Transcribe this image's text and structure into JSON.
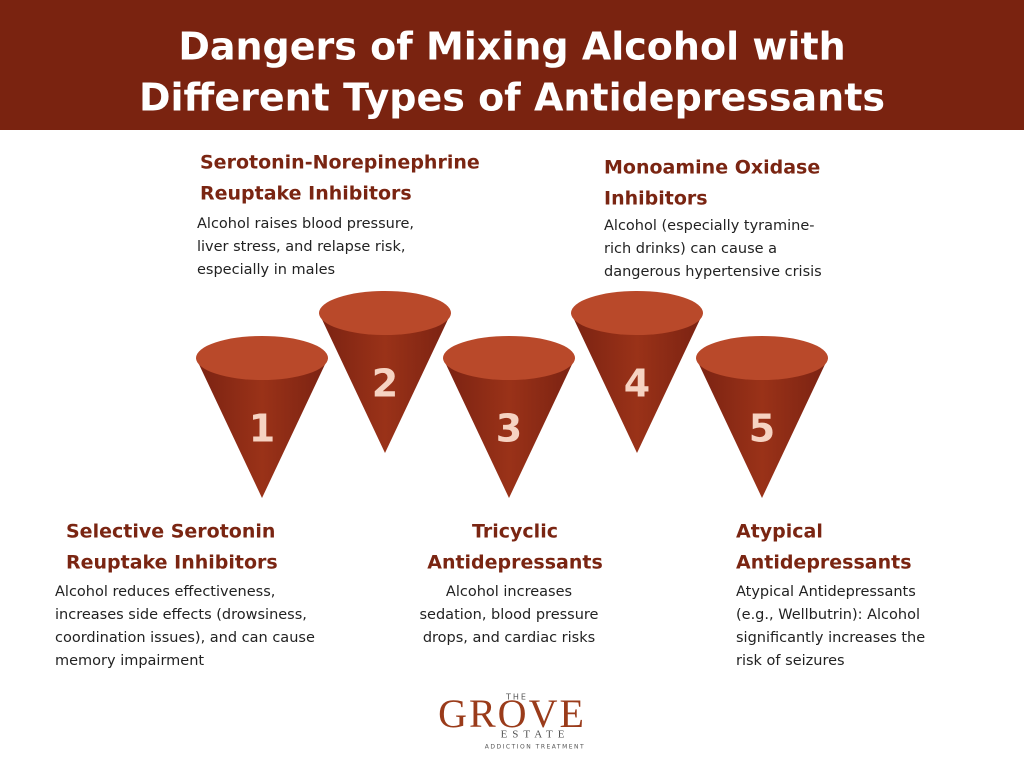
{
  "header": {
    "title_lines": [
      "Dangers of Mixing Alcohol with",
      "Different Types of Antidepressants"
    ]
  },
  "items": [
    {
      "number": "1",
      "heading": [
        "Selective Serotonin",
        "Reuptake Inhibitors"
      ],
      "description": [
        "Alcohol reduces effectiveness,",
        "increases side effects (drowsiness,",
        "coordination issues), and can cause",
        "memory impairment"
      ]
    },
    {
      "number": "2",
      "heading": [
        "Serotonin-Norepinephrine",
        "Reuptake Inhibitors"
      ],
      "description": [
        "Alcohol raises blood pressure,",
        "liver stress, and relapse risk,",
        "especially in males"
      ]
    },
    {
      "number": "3",
      "heading": [
        "Tricyclic",
        "Antidepressants"
      ],
      "description": [
        "Alcohol increases",
        "sedation, blood pressure",
        "drops, and cardiac risks"
      ]
    },
    {
      "number": "4",
      "heading": [
        "Monoamine Oxidase",
        "Inhibitors"
      ],
      "description": [
        "Alcohol (especially tyramine-",
        "rich drinks) can cause a",
        "dangerous hypertensive crisis"
      ]
    },
    {
      "number": "5",
      "heading": [
        "Atypical",
        "Antidepressants"
      ],
      "description": [
        "Atypical Antidepressants",
        "(e.g., Wellbutrin): Alcohol",
        "significantly increases the",
        "risk of seizures"
      ]
    }
  ],
  "logo": {
    "top": "THE",
    "name": "GROVE",
    "sub": "ESTATE",
    "tagline": "ADDICTION TREATMENT"
  }
}
